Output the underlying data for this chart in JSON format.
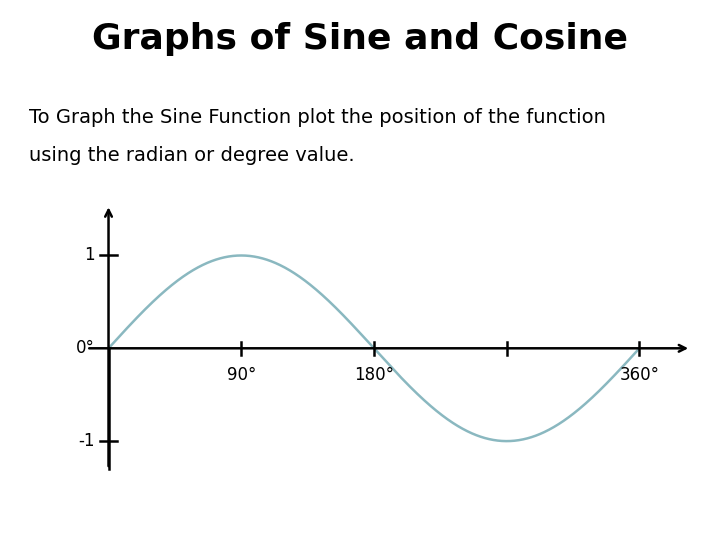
{
  "title": "Graphs of Sine and Cosine",
  "subtitle_line1": "To Graph the Sine Function plot the position of the function",
  "subtitle_line2": "using the radian or degree value.",
  "title_fontsize": 26,
  "subtitle_fontsize": 14,
  "sine_color": "#8AB8C0",
  "axes_color": "#000000",
  "background_color": "#ffffff",
  "line_width": 1.8,
  "xlim_min": -15,
  "xlim_max": 400,
  "ylim_min": -1.6,
  "ylim_max": 1.6
}
